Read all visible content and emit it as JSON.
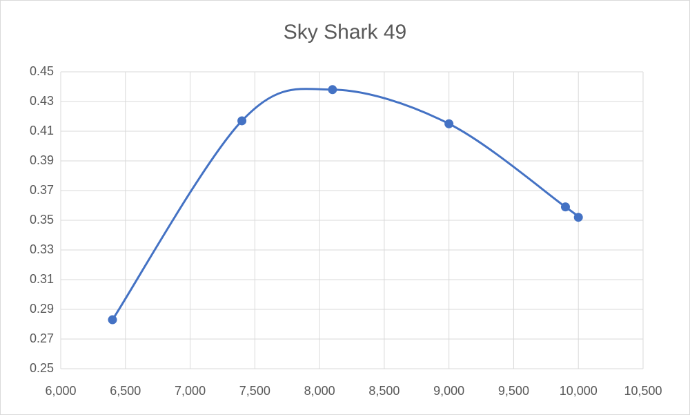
{
  "chart_data": {
    "type": "scatter",
    "title": "Sky Shark 49",
    "x": [
      6400,
      7400,
      8100,
      9000,
      9900,
      10000
    ],
    "series": [
      {
        "color": "#4472c4",
        "values": [
          0.283,
          0.417,
          0.438,
          0.415,
          0.359,
          0.352
        ]
      }
    ],
    "smooth": true,
    "grid": true,
    "xlim": [
      6000,
      10500
    ],
    "xticks": [
      {
        "value": 6000,
        "label": "6,000"
      },
      {
        "value": 6500,
        "label": "6,500"
      },
      {
        "value": 7000,
        "label": "7,000"
      },
      {
        "value": 7500,
        "label": "7,500"
      },
      {
        "value": 8000,
        "label": "8,000"
      },
      {
        "value": 8500,
        "label": "8,500"
      },
      {
        "value": 9000,
        "label": "9,000"
      },
      {
        "value": 9500,
        "label": "9,500"
      },
      {
        "value": 10000,
        "label": "10,000"
      },
      {
        "value": 10500,
        "label": "10,500"
      }
    ],
    "ylim": [
      0.25,
      0.45
    ],
    "yticks": [
      0.25,
      0.27,
      0.29,
      0.31,
      0.33,
      0.35,
      0.37,
      0.39,
      0.41,
      0.43,
      0.45
    ]
  }
}
